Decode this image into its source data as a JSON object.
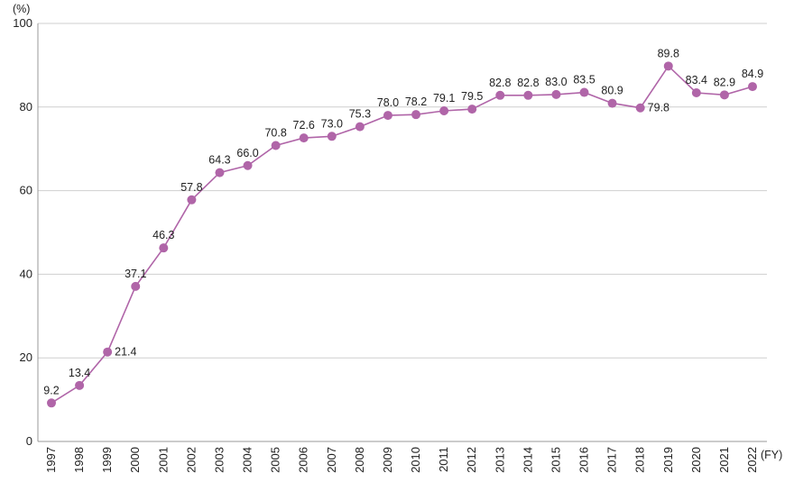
{
  "chart_data": {
    "type": "line",
    "title": "",
    "xlabel": "(FY)",
    "ylabel": "(%)",
    "ylim": [
      0,
      100
    ],
    "yticks": [
      "0",
      "20",
      "40",
      "60",
      "80",
      "100"
    ],
    "grid": true,
    "series_color": "#b065a8",
    "categories": [
      "1997",
      "1998",
      "1999",
      "2000",
      "2001",
      "2002",
      "2003",
      "2004",
      "2005",
      "2006",
      "2007",
      "2008",
      "2009",
      "2010",
      "2011",
      "2012",
      "2013",
      "2014",
      "2015",
      "2016",
      "2017",
      "2018",
      "2019",
      "2020",
      "2021",
      "2022"
    ],
    "series": [
      {
        "values": [
          9.2,
          13.4,
          21.4,
          37.1,
          46.3,
          57.8,
          64.3,
          66.0,
          70.8,
          72.6,
          73.0,
          75.3,
          78.0,
          78.2,
          79.1,
          79.5,
          82.8,
          82.8,
          83.0,
          83.5,
          80.9,
          79.8,
          89.8,
          83.4,
          82.9,
          84.9
        ],
        "labels": [
          "9.2",
          "13.4",
          "21.4",
          "37.1",
          "46.3",
          "57.8",
          "64.3",
          "66.0",
          "70.8",
          "72.6",
          "73.0",
          "75.3",
          "78.0",
          "78.2",
          "79.1",
          "79.5",
          "82.8",
          "82.8",
          "83.0",
          "83.5",
          "80.9",
          "79.8",
          "89.8",
          "83.4",
          "82.9",
          "84.9"
        ]
      }
    ]
  }
}
